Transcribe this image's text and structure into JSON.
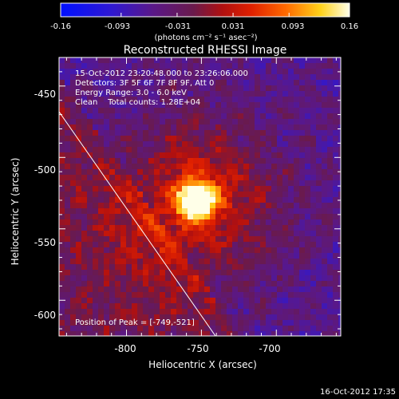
{
  "colorbar": {
    "tick_labels": [
      "-0.16",
      "-0.093",
      "-0.031",
      "0.031",
      "0.093",
      "0.16"
    ],
    "tick_values": [
      -0.16,
      -0.093,
      -0.031,
      0.031,
      0.093,
      0.16
    ],
    "range": [
      -0.16,
      0.16
    ],
    "unit_label": "(photons cm⁻² s⁻¹ asec⁻²)"
  },
  "title": "Reconstructed RHESSI Image",
  "info_lines": [
    "15-Oct-2012 23:20:48.000 to 23:26:06.000",
    "Detectors: 3F 5F 6F 7F 8F 9F, Att 0",
    "Energy Range: 3.0 - 6.0 keV",
    "Clean    Total counts: 1.28E+04"
  ],
  "peak_label": "Position of Peak = [-749,-521]",
  "x_axis": {
    "label": "Heliocentric X (arcsec)",
    "tick_labels": [
      "-800",
      "-750",
      "-700"
    ],
    "tick_values": [
      -800,
      -750,
      -700
    ],
    "range": [
      -845,
      -657
    ]
  },
  "y_axis": {
    "label": "Heliocentric Y (arcsec)",
    "tick_labels": [
      "-450",
      "-500",
      "-550",
      "-600"
    ],
    "tick_values": [
      -450,
      -500,
      -550,
      -600
    ],
    "range": [
      -625,
      -430
    ]
  },
  "footer_timestamp": "16-Oct-2012 17:35",
  "colors": {
    "background": "#000000",
    "foreground": "#ffffff",
    "limb_line": "#ffffff"
  }
}
